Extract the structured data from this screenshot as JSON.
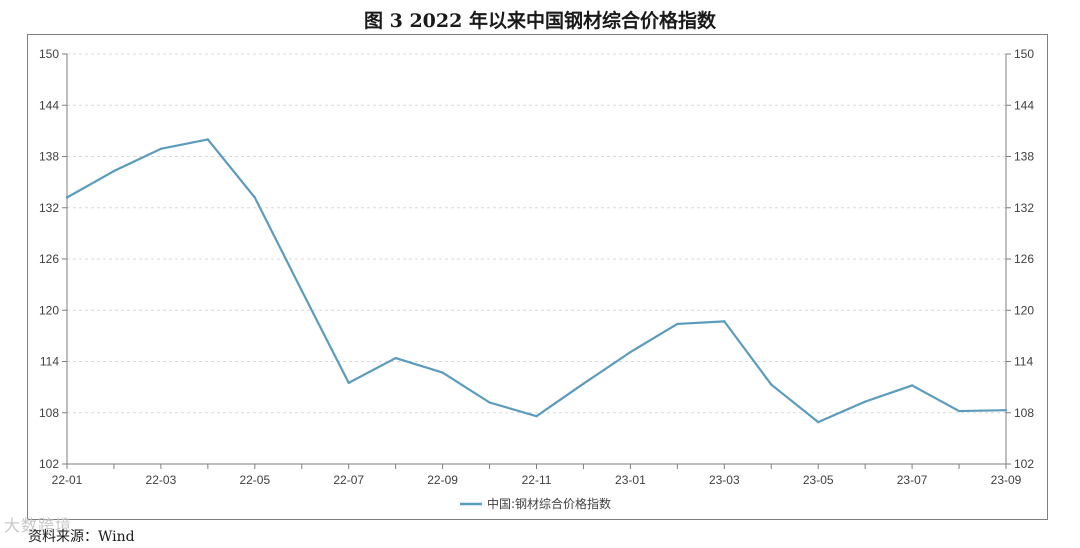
{
  "figure": {
    "title": "图 3    2022 年以来中国钢材综合价格指数",
    "source": "资料来源：Wind",
    "watermark": "大数跨境"
  },
  "chart_data": {
    "type": "line",
    "x": [
      "22-01",
      "22-02",
      "22-03",
      "22-04",
      "22-05",
      "22-06",
      "22-07",
      "22-08",
      "22-09",
      "22-10",
      "22-11",
      "22-12",
      "23-01",
      "23-02",
      "23-03",
      "23-04",
      "23-05",
      "23-06",
      "23-07",
      "23-08",
      "23-09"
    ],
    "x_tick_labels": [
      "22-01",
      "22-03",
      "22-05",
      "22-07",
      "22-09",
      "22-11",
      "23-01",
      "23-03",
      "23-05",
      "23-07",
      "23-09"
    ],
    "series": [
      {
        "name": "中国:钢材综合价格指数",
        "color": "#5b9bbd",
        "values": [
          133.2,
          136.3,
          138.9,
          140.0,
          133.2,
          122.3,
          111.5,
          114.4,
          112.7,
          109.2,
          107.6,
          111.4,
          115.1,
          118.4,
          118.7,
          111.3,
          106.9,
          109.3,
          111.2,
          108.2,
          108.3
        ]
      }
    ],
    "ylim": [
      102,
      150
    ],
    "y_ticks": [
      102,
      108,
      114,
      120,
      126,
      132,
      138,
      144,
      150
    ],
    "y_axis_right_mirror": true,
    "grid": "horizontal-dashed",
    "legend_position": "bottom-center",
    "xlabel": "",
    "ylabel": ""
  }
}
